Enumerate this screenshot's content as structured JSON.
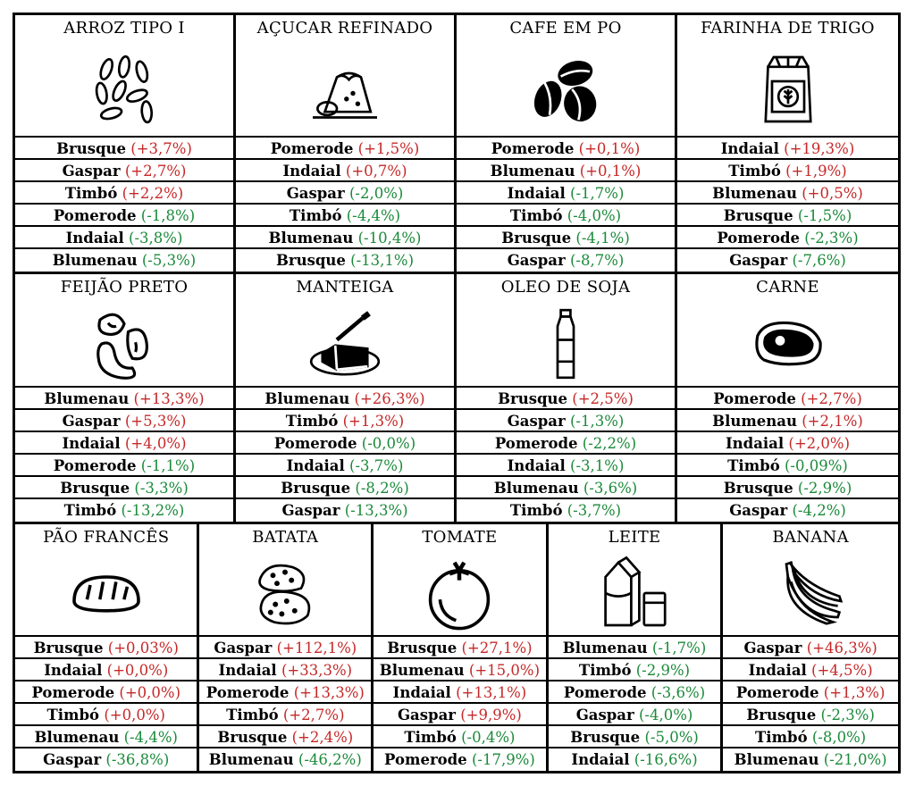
{
  "colors": {
    "up": "#c62828",
    "down": "#1b8a3a",
    "text": "#000000"
  },
  "products": [
    {
      "name": "ARROZ TIPO I",
      "icon": "rice-icon",
      "entries": [
        {
          "city": "Brusque",
          "value": "(+3,7%)",
          "dir": "up"
        },
        {
          "city": "Gaspar",
          "value": "(+2,7%)",
          "dir": "up"
        },
        {
          "city": "Timbó",
          "value": "(+2,2%)",
          "dir": "up"
        },
        {
          "city": "Pomerode",
          "value": "(-1,8%)",
          "dir": "down"
        },
        {
          "city": "Indaial",
          "value": "(-3,8%)",
          "dir": "down"
        },
        {
          "city": "Blumenau",
          "value": "(-5,3%)",
          "dir": "down"
        }
      ]
    },
    {
      "name": "AÇUCAR REFINADO",
      "icon": "sugar-icon",
      "entries": [
        {
          "city": "Pomerode",
          "value": "(+1,5%)",
          "dir": "up"
        },
        {
          "city": "Indaial",
          "value": "(+0,7%)",
          "dir": "up"
        },
        {
          "city": "Gaspar",
          "value": "(-2,0%)",
          "dir": "down"
        },
        {
          "city": "Timbó",
          "value": "(-4,4%)",
          "dir": "down"
        },
        {
          "city": "Blumenau",
          "value": "(-10,4%)",
          "dir": "down"
        },
        {
          "city": "Brusque",
          "value": "(-13,1%)",
          "dir": "down"
        }
      ]
    },
    {
      "name": "CAFE EM PO",
      "icon": "coffee-beans-icon",
      "entries": [
        {
          "city": "Pomerode",
          "value": "(+0,1%)",
          "dir": "up"
        },
        {
          "city": "Blumenau",
          "value": "(+0,1%)",
          "dir": "up"
        },
        {
          "city": "Indaial",
          "value": "(-1,7%)",
          "dir": "down"
        },
        {
          "city": "Timbó",
          "value": "(-4,0%)",
          "dir": "down"
        },
        {
          "city": "Brusque",
          "value": "(-4,1%)",
          "dir": "down"
        },
        {
          "city": "Gaspar",
          "value": "(-8,7%)",
          "dir": "down"
        }
      ]
    },
    {
      "name": "FARINHA DE TRIGO",
      "icon": "flour-bag-icon",
      "entries": [
        {
          "city": "Indaial",
          "value": "(+19,3%)",
          "dir": "up"
        },
        {
          "city": "Timbó",
          "value": "(+1,9%)",
          "dir": "up"
        },
        {
          "city": "Blumenau",
          "value": "(+0,5%)",
          "dir": "up"
        },
        {
          "city": "Brusque",
          "value": "(-1,5%)",
          "dir": "down"
        },
        {
          "city": "Pomerode",
          "value": "(-2,3%)",
          "dir": "down"
        },
        {
          "city": "Gaspar",
          "value": "(-7,6%)",
          "dir": "down"
        }
      ]
    },
    {
      "name": "FEIJÃO PRETO",
      "icon": "beans-icon",
      "entries": [
        {
          "city": "Blumenau",
          "value": "(+13,3%)",
          "dir": "up"
        },
        {
          "city": "Gaspar",
          "value": "(+5,3%)",
          "dir": "up"
        },
        {
          "city": "Indaial",
          "value": "(+4,0%)",
          "dir": "up"
        },
        {
          "city": "Pomerode",
          "value": "(-1,1%)",
          "dir": "down"
        },
        {
          "city": "Brusque",
          "value": "(-3,3%)",
          "dir": "down"
        },
        {
          "city": "Timbó",
          "value": "(-13,2%)",
          "dir": "down"
        }
      ]
    },
    {
      "name": "MANTEIGA",
      "icon": "butter-icon",
      "entries": [
        {
          "city": "Blumenau",
          "value": "(+26,3%)",
          "dir": "up"
        },
        {
          "city": "Timbó",
          "value": "(+1,3%)",
          "dir": "up"
        },
        {
          "city": "Pomerode",
          "value": "(-0,0%)",
          "dir": "down"
        },
        {
          "city": "Indaial",
          "value": "(-3,7%)",
          "dir": "down"
        },
        {
          "city": "Brusque",
          "value": "(-8,2%)",
          "dir": "down"
        },
        {
          "city": "Gaspar",
          "value": "(-13,3%)",
          "dir": "down"
        }
      ]
    },
    {
      "name": "OLEO DE SOJA",
      "icon": "oil-bottle-icon",
      "entries": [
        {
          "city": "Brusque",
          "value": "(+2,5%)",
          "dir": "up"
        },
        {
          "city": "Gaspar",
          "value": "(-1,3%)",
          "dir": "down"
        },
        {
          "city": "Pomerode",
          "value": "(-2,2%)",
          "dir": "down"
        },
        {
          "city": "Indaial",
          "value": "(-3,1%)",
          "dir": "down"
        },
        {
          "city": "Blumenau",
          "value": "(-3,6%)",
          "dir": "down"
        },
        {
          "city": "Timbó",
          "value": "(-3,7%)",
          "dir": "down"
        }
      ]
    },
    {
      "name": "CARNE",
      "icon": "steak-icon",
      "entries": [
        {
          "city": "Pomerode",
          "value": "(+2,7%)",
          "dir": "up"
        },
        {
          "city": "Blumenau",
          "value": "(+2,1%)",
          "dir": "up"
        },
        {
          "city": "Indaial",
          "value": "(+2,0%)",
          "dir": "up"
        },
        {
          "city": "Timbó",
          "value": "(-0,09%)",
          "dir": "down"
        },
        {
          "city": "Brusque",
          "value": "(-2,9%)",
          "dir": "down"
        },
        {
          "city": "Gaspar",
          "value": "(-4,2%)",
          "dir": "down"
        }
      ]
    },
    {
      "name": "PÃO FRANCÊS",
      "icon": "bread-icon",
      "entries": [
        {
          "city": "Brusque",
          "value": "(+0,03%)",
          "dir": "up"
        },
        {
          "city": "Indaial",
          "value": "(+0,0%)",
          "dir": "up"
        },
        {
          "city": "Pomerode",
          "value": "(+0,0%)",
          "dir": "up"
        },
        {
          "city": "Timbó",
          "value": "(+0,0%)",
          "dir": "up"
        },
        {
          "city": "Blumenau",
          "value": "(-4,4%)",
          "dir": "down"
        },
        {
          "city": "Gaspar",
          "value": "(-36,8%)",
          "dir": "down"
        }
      ]
    },
    {
      "name": "BATATA",
      "icon": "potato-icon",
      "entries": [
        {
          "city": "Gaspar",
          "value": "(+112,1%)",
          "dir": "up"
        },
        {
          "city": "Indaial",
          "value": "(+33,3%)",
          "dir": "up"
        },
        {
          "city": "Pomerode",
          "value": "(+13,3%)",
          "dir": "up"
        },
        {
          "city": "Timbó",
          "value": "(+2,7%)",
          "dir": "up"
        },
        {
          "city": "Brusque",
          "value": "(+2,4%)",
          "dir": "up"
        },
        {
          "city": "Blumenau",
          "value": "(-46,2%)",
          "dir": "down"
        }
      ]
    },
    {
      "name": "TOMATE",
      "icon": "tomato-icon",
      "entries": [
        {
          "city": "Brusque",
          "value": "(+27,1%)",
          "dir": "up"
        },
        {
          "city": "Blumenau",
          "value": "(+15,0%)",
          "dir": "up"
        },
        {
          "city": "Indaial",
          "value": "(+13,1%)",
          "dir": "up"
        },
        {
          "city": "Gaspar",
          "value": "(+9,9%)",
          "dir": "up"
        },
        {
          "city": "Timbó",
          "value": "(-0,4%)",
          "dir": "down"
        },
        {
          "city": "Pomerode",
          "value": "(-17,9%)",
          "dir": "down"
        }
      ]
    },
    {
      "name": "LEITE",
      "icon": "milk-icon",
      "entries": [
        {
          "city": "Blumenau",
          "value": "(-1,7%)",
          "dir": "down"
        },
        {
          "city": "Timbó",
          "value": "(-2,9%)",
          "dir": "down"
        },
        {
          "city": "Pomerode",
          "value": "(-3,6%)",
          "dir": "down"
        },
        {
          "city": "Gaspar",
          "value": "(-4,0%)",
          "dir": "down"
        },
        {
          "city": "Brusque",
          "value": "(-5,0%)",
          "dir": "down"
        },
        {
          "city": "Indaial",
          "value": "(-16,6%)",
          "dir": "down"
        }
      ]
    },
    {
      "name": "BANANA",
      "icon": "banana-icon",
      "entries": [
        {
          "city": "Gaspar",
          "value": "(+46,3%)",
          "dir": "up"
        },
        {
          "city": "Indaial",
          "value": "(+4,5%)",
          "dir": "up"
        },
        {
          "city": "Pomerode",
          "value": "(+1,3%)",
          "dir": "up"
        },
        {
          "city": "Brusque",
          "value": "(-2,3%)",
          "dir": "down"
        },
        {
          "city": "Timbó",
          "value": "(-8,0%)",
          "dir": "down"
        },
        {
          "city": "Blumenau",
          "value": "(-21,0%)",
          "dir": "down"
        }
      ]
    }
  ]
}
